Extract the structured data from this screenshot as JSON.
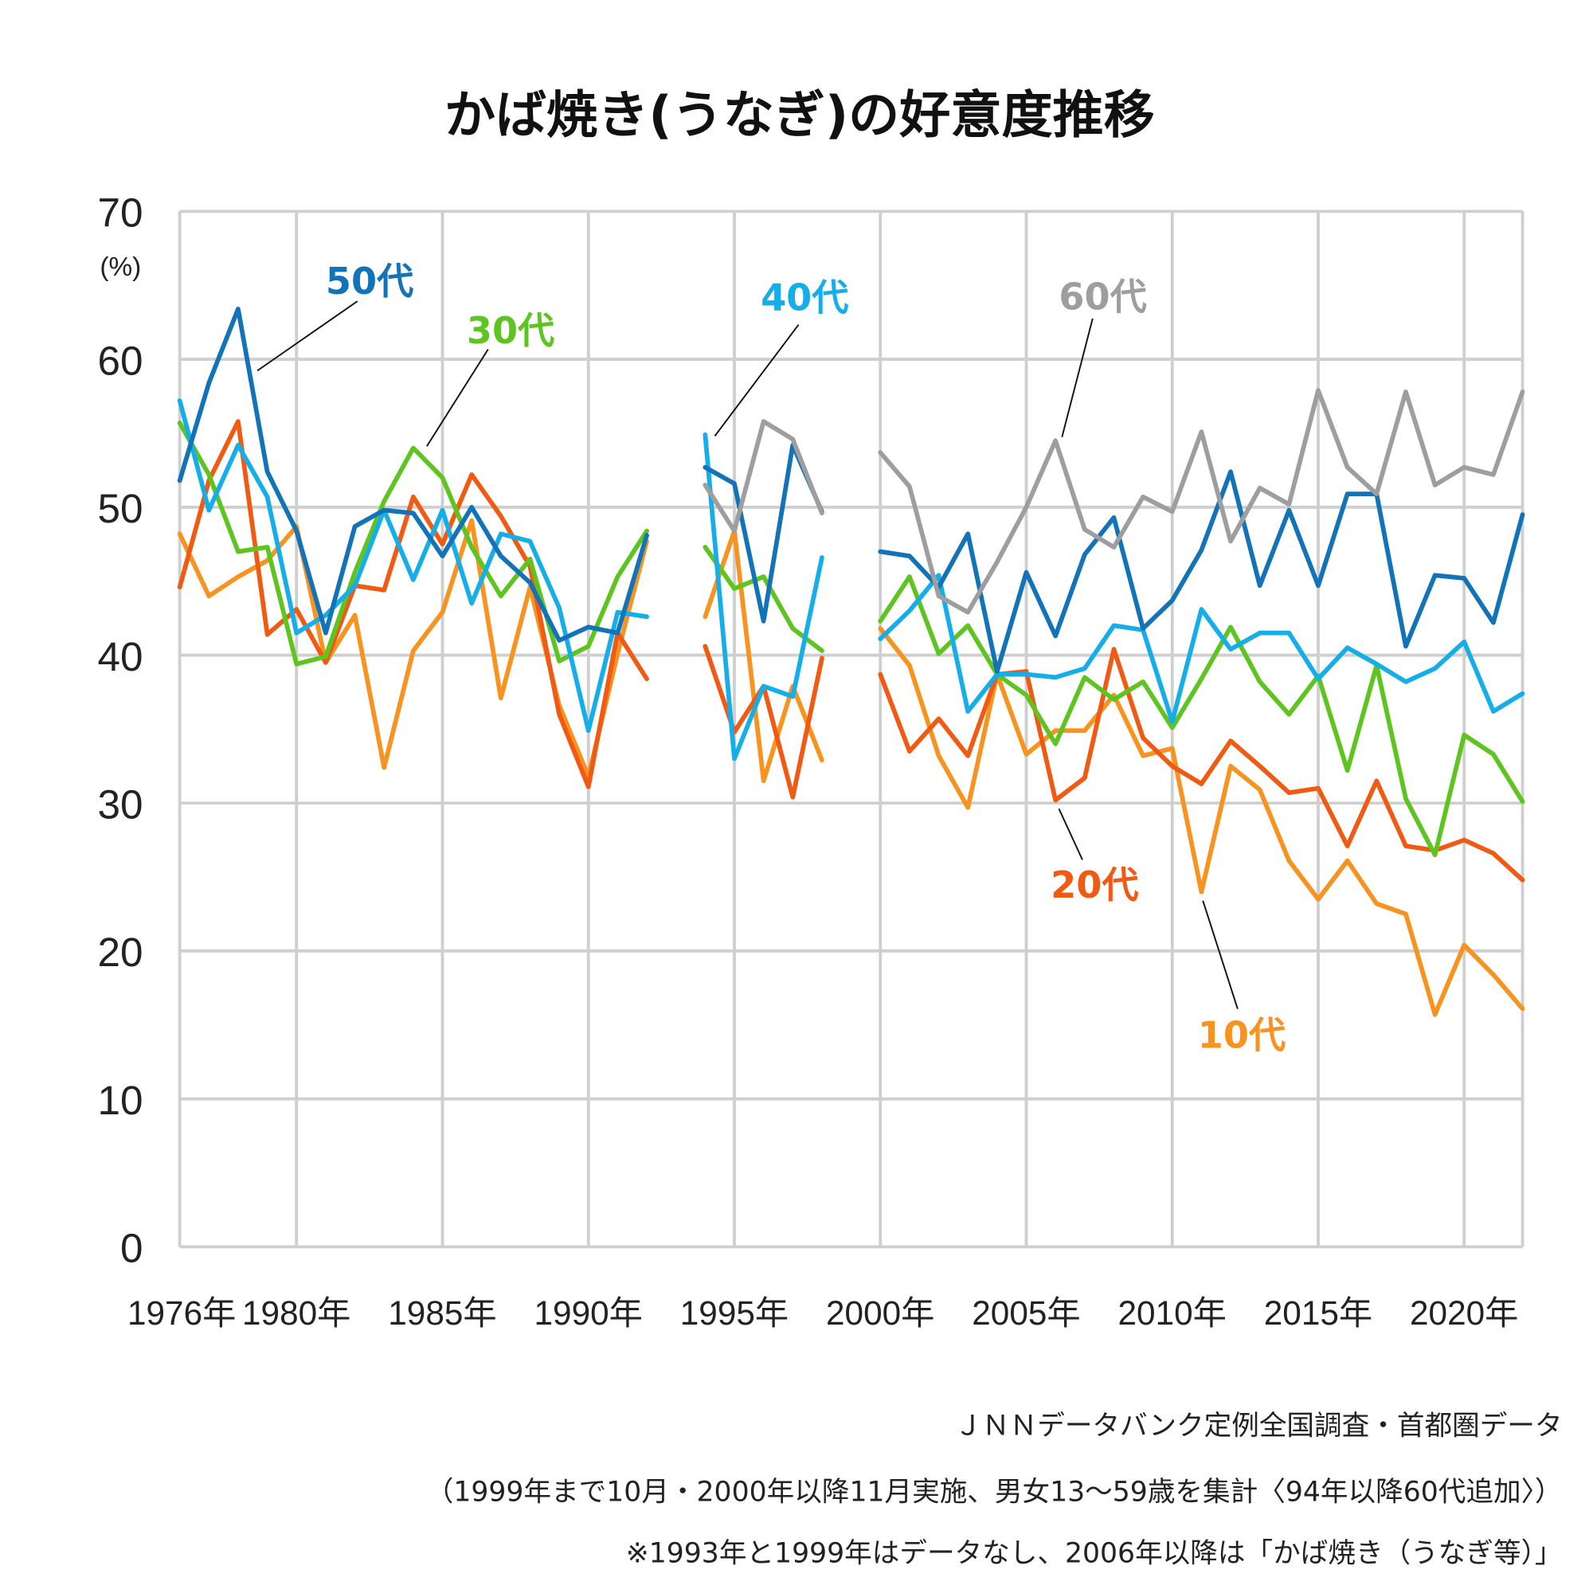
{
  "chart_data": {
    "type": "line",
    "title": "かば焼き(うなぎ)の好意度推移",
    "ylabel": "(%)",
    "xlabel": "",
    "ylim": [
      0,
      70
    ],
    "yticks": [
      "0",
      "10",
      "20",
      "30",
      "40",
      "50",
      "60",
      "70"
    ],
    "xlim": [
      1976,
      2022
    ],
    "xticks": [
      {
        "year": 1976,
        "label": "1976年"
      },
      {
        "year": 1980,
        "label": "1980年"
      },
      {
        "year": 1985,
        "label": "1985年"
      },
      {
        "year": 1990,
        "label": "1990年"
      },
      {
        "year": 1995,
        "label": "1995年"
      },
      {
        "year": 2000,
        "label": "2000年"
      },
      {
        "year": 2005,
        "label": "2005年"
      },
      {
        "year": 2010,
        "label": "2010年"
      },
      {
        "year": 2015,
        "label": "2015年"
      },
      {
        "year": 2020,
        "label": "2020年"
      }
    ],
    "grid": true,
    "x": [
      1976,
      1977,
      1978,
      1979,
      1980,
      1981,
      1982,
      1983,
      1984,
      1985,
      1986,
      1987,
      1988,
      1989,
      1990,
      1991,
      1992,
      1993,
      1994,
      1995,
      1996,
      1997,
      1998,
      1999,
      2000,
      2001,
      2002,
      2003,
      2004,
      2005,
      2006,
      2007,
      2008,
      2009,
      2010,
      2011,
      2012,
      2013,
      2014,
      2015,
      2016,
      2017,
      2018,
      2019,
      2020,
      2021,
      2022
    ],
    "series": [
      {
        "name": "10代",
        "color": "#f7931e",
        "values": [
          48.2,
          44.0,
          45.3,
          46.4,
          48.7,
          39.5,
          42.7,
          32.4,
          40.3,
          42.9,
          49.1,
          37.1,
          44.6,
          36.6,
          31.8,
          40.1,
          47.7,
          null,
          42.6,
          48.4,
          31.5,
          37.9,
          32.9,
          null,
          41.8,
          39.3,
          33.2,
          29.7,
          38.7,
          33.3,
          34.9,
          34.9,
          37.3,
          33.2,
          33.7,
          24.0,
          32.5,
          30.9,
          26.1,
          23.5,
          26.1,
          23.2,
          22.5,
          15.7,
          20.4,
          18.4,
          16.1
        ]
      },
      {
        "name": "20代",
        "color": "#f05a12",
        "values": [
          44.6,
          51.8,
          55.8,
          41.4,
          43.1,
          39.5,
          44.7,
          44.4,
          50.7,
          47.5,
          52.2,
          49.4,
          46.0,
          36.0,
          31.1,
          41.5,
          38.4,
          null,
          40.6,
          34.8,
          37.9,
          30.4,
          39.8,
          null,
          38.7,
          33.5,
          35.7,
          33.2,
          38.7,
          38.9,
          30.2,
          31.7,
          40.4,
          34.4,
          32.5,
          31.3,
          34.2,
          32.5,
          30.7,
          31.0,
          27.1,
          31.5,
          27.1,
          26.8,
          27.5,
          26.6,
          24.8
        ]
      },
      {
        "name": "30代",
        "color": "#5ec520",
        "values": [
          55.7,
          52.2,
          47.0,
          47.3,
          39.4,
          39.9,
          45.6,
          50.4,
          54.0,
          52.0,
          47.3,
          44.0,
          46.5,
          39.6,
          40.6,
          45.3,
          48.4,
          null,
          47.3,
          44.5,
          45.3,
          41.8,
          40.3,
          null,
          42.3,
          45.3,
          40.1,
          42.0,
          38.7,
          37.3,
          34.0,
          38.5,
          37.0,
          38.2,
          35.1,
          38.4,
          41.9,
          38.2,
          36.0,
          38.6,
          32.2,
          39.3,
          30.3,
          26.5,
          34.6,
          33.3,
          30.1
        ]
      },
      {
        "name": "40代",
        "color": "#16aee8",
        "values": [
          57.2,
          49.8,
          54.2,
          50.7,
          41.5,
          42.7,
          44.7,
          49.8,
          45.1,
          49.8,
          43.5,
          48.2,
          47.7,
          43.2,
          34.9,
          42.9,
          42.6,
          null,
          54.9,
          33.0,
          37.9,
          37.2,
          46.6,
          null,
          41.1,
          43.0,
          45.4,
          36.2,
          38.7,
          38.7,
          38.5,
          39.1,
          42.0,
          41.7,
          35.5,
          43.1,
          40.4,
          41.5,
          41.5,
          38.4,
          40.5,
          39.4,
          38.2,
          39.1,
          40.9,
          36.2,
          37.4
        ]
      },
      {
        "name": "50代",
        "color": "#1273b8",
        "values": [
          51.8,
          58.4,
          63.4,
          52.4,
          48.4,
          41.5,
          48.7,
          49.8,
          49.6,
          46.7,
          50.0,
          46.7,
          44.9,
          41.0,
          41.9,
          41.5,
          48.1,
          null,
          52.7,
          51.6,
          42.3,
          54.2,
          49.7,
          null,
          47.0,
          46.7,
          44.6,
          48.2,
          38.9,
          45.6,
          41.3,
          46.8,
          49.3,
          41.8,
          43.7,
          47.1,
          52.4,
          44.7,
          49.8,
          44.7,
          50.9,
          50.9,
          40.6,
          45.4,
          45.2,
          42.2,
          49.5
        ]
      },
      {
        "name": "60代",
        "color": "#9e9e9e",
        "values": [
          null,
          null,
          null,
          null,
          null,
          null,
          null,
          null,
          null,
          null,
          null,
          null,
          null,
          null,
          null,
          null,
          null,
          null,
          51.5,
          48.4,
          55.8,
          54.6,
          49.6,
          null,
          53.7,
          51.4,
          44.0,
          42.9,
          46.3,
          50.0,
          54.5,
          48.5,
          47.3,
          50.7,
          49.7,
          55.1,
          47.7,
          51.3,
          50.2,
          57.9,
          52.7,
          50.9,
          57.8,
          51.5,
          52.7,
          52.2,
          57.8
        ]
      }
    ]
  },
  "notes": [
    "ＪＮＮデータバンク定例全国調査・首都圏データ",
    "（1999年まで10月・2000年以降11月実施、男女13～59歳を集計〈94年以降60代追加〉）",
    "※1993年と1999年はデータなし、2006年以降は「かば焼き（うなぎ等）」"
  ]
}
